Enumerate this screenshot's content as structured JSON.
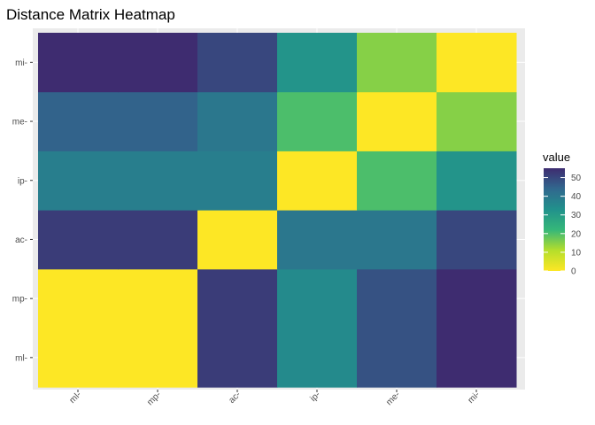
{
  "chart_data": {
    "type": "heatmap",
    "title": "Distance Matrix Heatmap",
    "xlabel": "",
    "ylabel": "",
    "x_categories": [
      "ml",
      "mp",
      "ac",
      "ip",
      "me",
      "mi"
    ],
    "y_categories": [
      "ml",
      "mp",
      "ac",
      "ip",
      "me",
      "mi"
    ],
    "x_tick_labels": [
      "ml-",
      "mp-",
      "ac-",
      "ip-",
      "me-",
      "mi-"
    ],
    "y_tick_labels": [
      "ml-",
      "mp-",
      "ac-",
      "ip-",
      "me-",
      "mi-"
    ],
    "values": [
      [
        0,
        0,
        52,
        35,
        48,
        55
      ],
      [
        0,
        0,
        52,
        35,
        48,
        55
      ],
      [
        52,
        52,
        0,
        40,
        40,
        50
      ],
      [
        38,
        38,
        38,
        0,
        20,
        32
      ],
      [
        45,
        45,
        40,
        20,
        0,
        15
      ],
      [
        55,
        55,
        50,
        32,
        15,
        0
      ]
    ],
    "legend": {
      "title": "value",
      "ticks": [
        0,
        10,
        20,
        30,
        40,
        50
      ],
      "range": [
        0,
        55
      ],
      "placement": "right"
    },
    "colorscale": "viridis-reversed",
    "panel_background": "#ebebeb",
    "grid": true
  }
}
